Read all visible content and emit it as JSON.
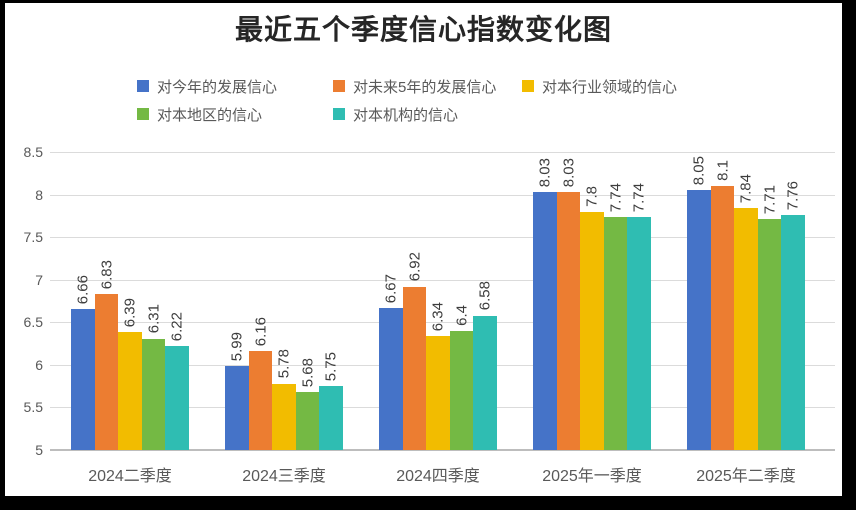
{
  "chart_data": {
    "type": "bar",
    "title": "最近五个季度信心指数变化图",
    "categories": [
      "2024二季度",
      "2024三季度",
      "2024四季度",
      "2025年一季度",
      "2025年二季度"
    ],
    "series": [
      {
        "name": "对今年的发展信心",
        "color": "#4573C8",
        "values": [
          6.66,
          5.99,
          6.67,
          8.03,
          8.05
        ]
      },
      {
        "name": "对未来5年的发展信心",
        "color": "#EC7D31",
        "values": [
          6.83,
          6.16,
          6.92,
          8.03,
          8.1
        ]
      },
      {
        "name": "对本行业领域的信心",
        "color": "#F2BC00",
        "values": [
          6.39,
          5.78,
          6.34,
          7.8,
          7.84
        ]
      },
      {
        "name": "对本地区的信心",
        "color": "#74B944",
        "values": [
          6.31,
          5.68,
          6.4,
          7.74,
          7.71
        ]
      },
      {
        "name": "对本机构的信心",
        "color": "#2FBDB2",
        "values": [
          6.22,
          5.75,
          6.58,
          7.74,
          7.76
        ]
      }
    ],
    "ylim": [
      5,
      8.5
    ],
    "ytick_step": 0.5,
    "ytick_labels": [
      "8.5",
      "8",
      "7.5",
      "7",
      "6.5",
      "6",
      "5.5",
      "5"
    ],
    "xlabel": "",
    "ylabel": "",
    "grid": true,
    "legend_position": "top",
    "data_labels": "rotated-up"
  },
  "style": {
    "frame_color": "#000000",
    "background": "#ffffff",
    "gridline_color": "#DBDBDB",
    "axisline_color": "#BDBDBD",
    "title_color": "#262626",
    "label_color": "#595959",
    "value_label_color": "#3d3d3d"
  }
}
